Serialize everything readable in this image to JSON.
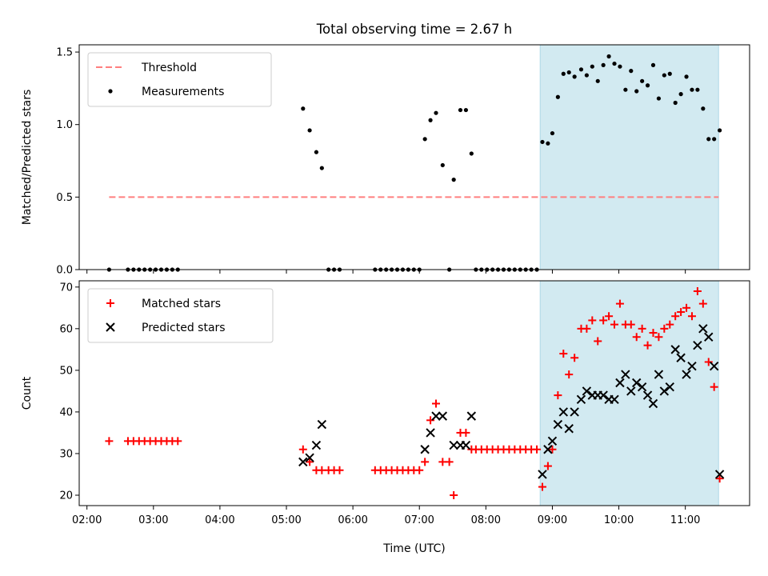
{
  "title": "Total observing time = 2.67 h",
  "colors": {
    "shade": "#add8e6",
    "threshold": "#ff7f7f",
    "measurements": "#000000",
    "matched": "#ff0000",
    "predicted": "#000000"
  },
  "chart_data": [
    {
      "type": "scatter",
      "ylabel": "Matched/Predicted stars",
      "xlabel": "",
      "xlim": [
        "01:53",
        "11:58"
      ],
      "ylim": [
        0,
        1.55
      ],
      "y_ticks": [
        "0.0",
        "0.5",
        "1.0",
        "1.5"
      ],
      "y_tick_values": [
        0,
        0.5,
        1.0,
        1.5
      ],
      "shaded_region": [
        "08:49",
        "11:30"
      ],
      "legend": {
        "position": "upper-left",
        "entries": [
          "Threshold",
          "Measurements"
        ]
      },
      "threshold": {
        "name": "Threshold",
        "x": [
          "02:20",
          "11:30"
        ],
        "y": 0.5,
        "style": "dashed"
      },
      "series": [
        {
          "name": "Measurements",
          "points": [
            [
              "02:20",
              0
            ],
            [
              "02:37",
              0
            ],
            [
              "02:42",
              0
            ],
            [
              "02:47",
              0
            ],
            [
              "02:52",
              0
            ],
            [
              "02:57",
              0
            ],
            [
              "03:02",
              0
            ],
            [
              "03:07",
              0
            ],
            [
              "03:12",
              0
            ],
            [
              "03:17",
              0
            ],
            [
              "03:22",
              0
            ],
            [
              "05:15",
              1.11
            ],
            [
              "05:21",
              0.96
            ],
            [
              "05:27",
              0.81
            ],
            [
              "05:32",
              0.7
            ],
            [
              "05:38",
              0
            ],
            [
              "05:43",
              0
            ],
            [
              "05:48",
              0
            ],
            [
              "06:20",
              0
            ],
            [
              "06:25",
              0
            ],
            [
              "06:30",
              0
            ],
            [
              "06:35",
              0
            ],
            [
              "06:40",
              0
            ],
            [
              "06:45",
              0
            ],
            [
              "06:50",
              0
            ],
            [
              "06:55",
              0
            ],
            [
              "07:00",
              0
            ],
            [
              "07:05",
              0.9
            ],
            [
              "07:10",
              1.03
            ],
            [
              "07:15",
              1.08
            ],
            [
              "07:21",
              0.72
            ],
            [
              "07:27",
              0
            ],
            [
              "07:31",
              0.62
            ],
            [
              "07:37",
              1.1
            ],
            [
              "07:42",
              1.1
            ],
            [
              "07:47",
              0.8
            ],
            [
              "07:51",
              0
            ],
            [
              "07:56",
              0
            ],
            [
              "08:01",
              0
            ],
            [
              "08:06",
              0
            ],
            [
              "08:11",
              0
            ],
            [
              "08:16",
              0
            ],
            [
              "08:21",
              0
            ],
            [
              "08:26",
              0
            ],
            [
              "08:31",
              0
            ],
            [
              "08:36",
              0
            ],
            [
              "08:41",
              0
            ],
            [
              "08:46",
              0
            ],
            [
              "08:51",
              0.88
            ],
            [
              "08:56",
              0.87
            ],
            [
              "09:00",
              0.94
            ],
            [
              "09:05",
              1.19
            ],
            [
              "09:10",
              1.35
            ],
            [
              "09:15",
              1.36
            ],
            [
              "09:20",
              1.33
            ],
            [
              "09:26",
              1.38
            ],
            [
              "09:31",
              1.34
            ],
            [
              "09:36",
              1.4
            ],
            [
              "09:41",
              1.3
            ],
            [
              "09:46",
              1.41
            ],
            [
              "09:51",
              1.47
            ],
            [
              "09:56",
              1.42
            ],
            [
              "10:01",
              1.4
            ],
            [
              "10:06",
              1.24
            ],
            [
              "10:11",
              1.37
            ],
            [
              "10:16",
              1.23
            ],
            [
              "10:21",
              1.3
            ],
            [
              "10:26",
              1.27
            ],
            [
              "10:31",
              1.41
            ],
            [
              "10:36",
              1.18
            ],
            [
              "10:41",
              1.34
            ],
            [
              "10:46",
              1.35
            ],
            [
              "10:51",
              1.15
            ],
            [
              "10:56",
              1.21
            ],
            [
              "11:01",
              1.33
            ],
            [
              "11:06",
              1.24
            ],
            [
              "11:11",
              1.24
            ],
            [
              "11:16",
              1.11
            ],
            [
              "11:21",
              0.9
            ],
            [
              "11:26",
              0.9
            ],
            [
              "11:31",
              0.96
            ]
          ]
        }
      ]
    },
    {
      "type": "scatter",
      "ylabel": "Count",
      "xlabel": "Time (UTC)",
      "xlim": [
        "01:53",
        "11:58"
      ],
      "ylim": [
        17.5,
        71.5
      ],
      "x_ticks": [
        "02:00",
        "03:00",
        "04:00",
        "05:00",
        "06:00",
        "07:00",
        "08:00",
        "09:00",
        "10:00",
        "11:00"
      ],
      "y_ticks": [
        "20",
        "30",
        "40",
        "50",
        "60",
        "70"
      ],
      "y_tick_values": [
        20,
        30,
        40,
        50,
        60,
        70
      ],
      "shaded_region": [
        "08:49",
        "11:30"
      ],
      "legend": {
        "position": "upper-left",
        "entries": [
          "Matched stars",
          "Predicted stars"
        ]
      },
      "series": [
        {
          "name": "Matched stars",
          "marker": "+",
          "points": [
            [
              "02:20",
              33
            ],
            [
              "02:37",
              33
            ],
            [
              "02:42",
              33
            ],
            [
              "02:47",
              33
            ],
            [
              "02:52",
              33
            ],
            [
              "02:57",
              33
            ],
            [
              "03:02",
              33
            ],
            [
              "03:07",
              33
            ],
            [
              "03:12",
              33
            ],
            [
              "03:17",
              33
            ],
            [
              "03:22",
              33
            ],
            [
              "05:15",
              31
            ],
            [
              "05:21",
              28
            ],
            [
              "05:27",
              26
            ],
            [
              "05:32",
              26
            ],
            [
              "05:38",
              26
            ],
            [
              "05:43",
              26
            ],
            [
              "05:48",
              26
            ],
            [
              "06:20",
              26
            ],
            [
              "06:25",
              26
            ],
            [
              "06:30",
              26
            ],
            [
              "06:35",
              26
            ],
            [
              "06:40",
              26
            ],
            [
              "06:45",
              26
            ],
            [
              "06:50",
              26
            ],
            [
              "06:55",
              26
            ],
            [
              "07:00",
              26
            ],
            [
              "07:05",
              28
            ],
            [
              "07:10",
              38
            ],
            [
              "07:15",
              42
            ],
            [
              "07:21",
              28
            ],
            [
              "07:27",
              28
            ],
            [
              "07:31",
              20
            ],
            [
              "07:37",
              35
            ],
            [
              "07:42",
              35
            ],
            [
              "07:47",
              31
            ],
            [
              "07:51",
              31
            ],
            [
              "07:56",
              31
            ],
            [
              "08:01",
              31
            ],
            [
              "08:06",
              31
            ],
            [
              "08:11",
              31
            ],
            [
              "08:16",
              31
            ],
            [
              "08:21",
              31
            ],
            [
              "08:26",
              31
            ],
            [
              "08:31",
              31
            ],
            [
              "08:36",
              31
            ],
            [
              "08:41",
              31
            ],
            [
              "08:46",
              31
            ],
            [
              "08:51",
              22
            ],
            [
              "08:56",
              27
            ],
            [
              "09:00",
              31
            ],
            [
              "09:05",
              44
            ],
            [
              "09:10",
              54
            ],
            [
              "09:15",
              49
            ],
            [
              "09:20",
              53
            ],
            [
              "09:26",
              60
            ],
            [
              "09:31",
              60
            ],
            [
              "09:36",
              62
            ],
            [
              "09:41",
              57
            ],
            [
              "09:46",
              62
            ],
            [
              "09:51",
              63
            ],
            [
              "09:56",
              61
            ],
            [
              "10:01",
              66
            ],
            [
              "10:06",
              61
            ],
            [
              "10:11",
              61
            ],
            [
              "10:16",
              58
            ],
            [
              "10:21",
              60
            ],
            [
              "10:26",
              56
            ],
            [
              "10:31",
              59
            ],
            [
              "10:36",
              58
            ],
            [
              "10:41",
              60
            ],
            [
              "10:46",
              61
            ],
            [
              "10:51",
              63
            ],
            [
              "10:56",
              64
            ],
            [
              "11:01",
              65
            ],
            [
              "11:06",
              63
            ],
            [
              "11:11",
              69
            ],
            [
              "11:16",
              66
            ],
            [
              "11:21",
              52
            ],
            [
              "11:26",
              46
            ],
            [
              "11:31",
              24
            ]
          ]
        },
        {
          "name": "Predicted stars",
          "marker": "x",
          "points": [
            [
              "05:15",
              28
            ],
            [
              "05:21",
              29
            ],
            [
              "05:27",
              32
            ],
            [
              "05:32",
              37
            ],
            [
              "07:05",
              31
            ],
            [
              "07:10",
              35
            ],
            [
              "07:15",
              39
            ],
            [
              "07:21",
              39
            ],
            [
              "07:31",
              32
            ],
            [
              "07:37",
              32
            ],
            [
              "07:42",
              32
            ],
            [
              "07:47",
              39
            ],
            [
              "08:51",
              25
            ],
            [
              "08:56",
              31
            ],
            [
              "09:00",
              33
            ],
            [
              "09:05",
              37
            ],
            [
              "09:10",
              40
            ],
            [
              "09:15",
              36
            ],
            [
              "09:20",
              40
            ],
            [
              "09:26",
              43
            ],
            [
              "09:31",
              45
            ],
            [
              "09:36",
              44
            ],
            [
              "09:41",
              44
            ],
            [
              "09:46",
              44
            ],
            [
              "09:51",
              43
            ],
            [
              "09:56",
              43
            ],
            [
              "10:01",
              47
            ],
            [
              "10:06",
              49
            ],
            [
              "10:11",
              45
            ],
            [
              "10:16",
              47
            ],
            [
              "10:21",
              46
            ],
            [
              "10:26",
              44
            ],
            [
              "10:31",
              42
            ],
            [
              "10:36",
              49
            ],
            [
              "10:41",
              45
            ],
            [
              "10:46",
              46
            ],
            [
              "10:51",
              55
            ],
            [
              "10:56",
              53
            ],
            [
              "11:01",
              49
            ],
            [
              "11:06",
              51
            ],
            [
              "11:11",
              56
            ],
            [
              "11:16",
              60
            ],
            [
              "11:21",
              58
            ],
            [
              "11:26",
              51
            ],
            [
              "11:31",
              25
            ]
          ]
        }
      ]
    }
  ]
}
